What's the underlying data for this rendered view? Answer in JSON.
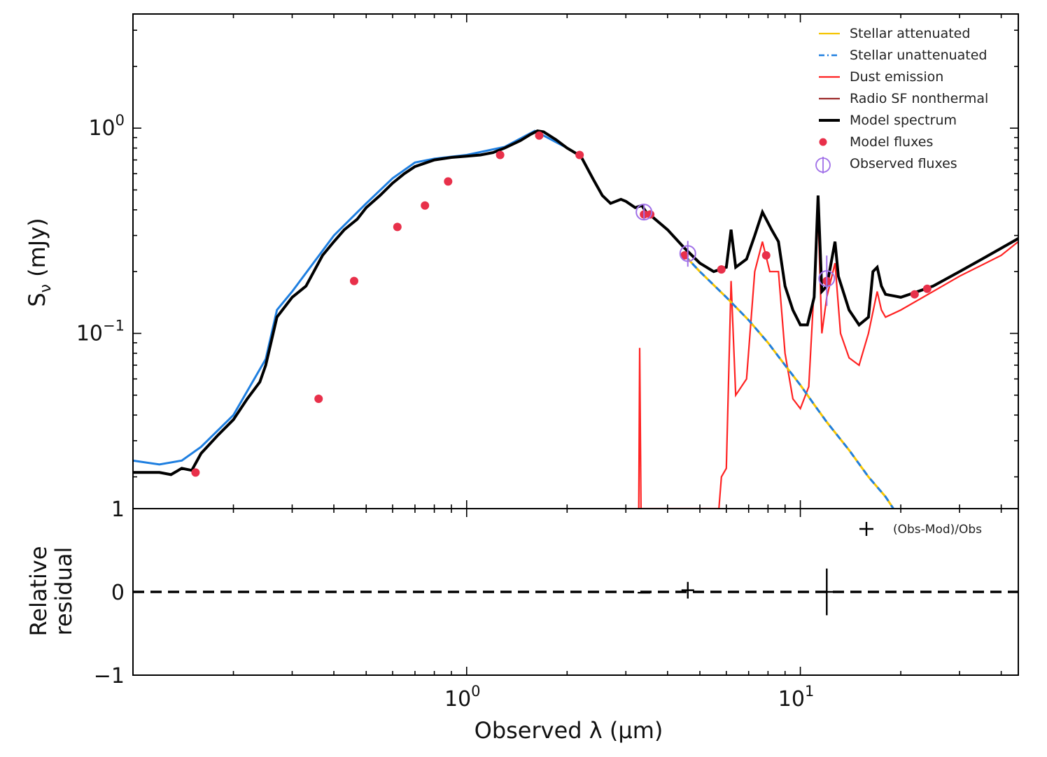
{
  "chart_data": [
    {
      "type": "line",
      "panel": "top",
      "xscale": "log",
      "yscale": "log",
      "xlim": [
        0.1,
        45
      ],
      "ylim": [
        0.014,
        3.6
      ],
      "ylabel_main": "S",
      "ylabel_sub": "ν",
      "ylabel_unit": " (mJy)",
      "yticks": [
        {
          "value": 1.0,
          "base": "10",
          "exp": "0"
        },
        {
          "value": 0.1,
          "base": "10",
          "exp": "−1"
        }
      ],
      "legend": {
        "position": "top-right",
        "entries": [
          {
            "label": "Stellar attenuated",
            "color": "#f5c400",
            "style": "solid"
          },
          {
            "label": "Stellar unattenuated",
            "color": "#1f7fe0",
            "style": "dashdot"
          },
          {
            "label": "Dust emission",
            "color": "#ff2222",
            "style": "solid"
          },
          {
            "label": "Radio SF nonthermal",
            "color": "#9c2a2a",
            "style": "solid"
          },
          {
            "label": "Model spectrum",
            "color": "#000000",
            "style": "thick"
          },
          {
            "label": "Model fluxes",
            "color": "#e8304a",
            "style": "dot"
          },
          {
            "label": "Observed fluxes",
            "color": "#a070e8",
            "style": "circle-errorbar"
          }
        ]
      },
      "series": [
        {
          "name": "Model spectrum",
          "color": "#000000",
          "points": [
            [
              0.1,
              0.021
            ],
            [
              0.108,
              0.021
            ],
            [
              0.12,
              0.021
            ],
            [
              0.13,
              0.0205
            ],
            [
              0.14,
              0.022
            ],
            [
              0.15,
              0.0215
            ],
            [
              0.16,
              0.026
            ],
            [
              0.18,
              0.032
            ],
            [
              0.2,
              0.038
            ],
            [
              0.22,
              0.048
            ],
            [
              0.24,
              0.058
            ],
            [
              0.25,
              0.07
            ],
            [
              0.27,
              0.12
            ],
            [
              0.3,
              0.15
            ],
            [
              0.33,
              0.17
            ],
            [
              0.37,
              0.24
            ],
            [
              0.4,
              0.28
            ],
            [
              0.43,
              0.32
            ],
            [
              0.47,
              0.36
            ],
            [
              0.5,
              0.41
            ],
            [
              0.55,
              0.47
            ],
            [
              0.6,
              0.54
            ],
            [
              0.65,
              0.6
            ],
            [
              0.7,
              0.65
            ],
            [
              0.8,
              0.7
            ],
            [
              0.9,
              0.72
            ],
            [
              1.0,
              0.73
            ],
            [
              1.1,
              0.74
            ],
            [
              1.2,
              0.76
            ],
            [
              1.3,
              0.8
            ],
            [
              1.45,
              0.87
            ],
            [
              1.55,
              0.93
            ],
            [
              1.63,
              0.97
            ],
            [
              1.7,
              0.96
            ],
            [
              1.85,
              0.88
            ],
            [
              2.0,
              0.8
            ],
            [
              2.2,
              0.73
            ],
            [
              2.4,
              0.56
            ],
            [
              2.55,
              0.47
            ],
            [
              2.7,
              0.43
            ],
            [
              2.9,
              0.45
            ],
            [
              3.0,
              0.44
            ],
            [
              3.2,
              0.41
            ],
            [
              3.35,
              0.42
            ],
            [
              3.45,
              0.39
            ],
            [
              3.6,
              0.37
            ],
            [
              4.0,
              0.32
            ],
            [
              4.5,
              0.26
            ],
            [
              5.0,
              0.22
            ],
            [
              5.5,
              0.2
            ],
            [
              6.0,
              0.21
            ],
            [
              6.2,
              0.32
            ],
            [
              6.4,
              0.21
            ],
            [
              6.9,
              0.23
            ],
            [
              7.3,
              0.3
            ],
            [
              7.7,
              0.39
            ],
            [
              8.2,
              0.32
            ],
            [
              8.6,
              0.28
            ],
            [
              9.0,
              0.17
            ],
            [
              9.5,
              0.13
            ],
            [
              10.0,
              0.11
            ],
            [
              10.5,
              0.11
            ],
            [
              11.0,
              0.15
            ],
            [
              11.3,
              0.47
            ],
            [
              11.6,
              0.16
            ],
            [
              12.0,
              0.17
            ],
            [
              12.3,
              0.21
            ],
            [
              12.7,
              0.28
            ],
            [
              13.0,
              0.19
            ],
            [
              14.0,
              0.13
            ],
            [
              15.0,
              0.11
            ],
            [
              16.0,
              0.12
            ],
            [
              16.5,
              0.2
            ],
            [
              17.0,
              0.21
            ],
            [
              17.5,
              0.17
            ],
            [
              18.0,
              0.155
            ],
            [
              20.0,
              0.15
            ],
            [
              22.0,
              0.158
            ],
            [
              25.0,
              0.17
            ],
            [
              30.0,
              0.2
            ],
            [
              35.0,
              0.23
            ],
            [
              40.0,
              0.26
            ],
            [
              45.0,
              0.29
            ]
          ]
        },
        {
          "name": "Stellar unattenuated",
          "color": "#1f7fe0",
          "points": [
            [
              0.1,
              0.024
            ],
            [
              0.12,
              0.023
            ],
            [
              0.14,
              0.024
            ],
            [
              0.16,
              0.028
            ],
            [
              0.2,
              0.04
            ],
            [
              0.25,
              0.075
            ],
            [
              0.27,
              0.13
            ],
            [
              0.3,
              0.16
            ],
            [
              0.4,
              0.3
            ],
            [
              0.5,
              0.43
            ],
            [
              0.6,
              0.57
            ],
            [
              0.7,
              0.68
            ],
            [
              0.8,
              0.71
            ],
            [
              1.0,
              0.74
            ],
            [
              1.3,
              0.81
            ],
            [
              1.6,
              0.97
            ],
            [
              2.0,
              0.8
            ],
            [
              2.2,
              0.73
            ]
          ]
        },
        {
          "name": "Stellar attenuated",
          "color": "#f5c400",
          "points": [
            [
              4.5,
              0.24
            ],
            [
              5.0,
              0.2
            ],
            [
              6.0,
              0.15
            ],
            [
              7.0,
              0.116
            ],
            [
              8.0,
              0.09
            ],
            [
              9.0,
              0.07
            ],
            [
              10.0,
              0.056
            ],
            [
              11.0,
              0.045
            ],
            [
              12.0,
              0.037
            ],
            [
              14.0,
              0.027
            ],
            [
              16.0,
              0.02
            ],
            [
              18.0,
              0.016
            ],
            [
              19.0,
              0.014
            ]
          ]
        },
        {
          "name": "Dust emission",
          "color": "#ff2222",
          "points": [
            [
              3.28,
              0.014
            ],
            [
              3.3,
              0.085
            ],
            [
              3.33,
              0.014
            ],
            [
              5.7,
              0.014
            ],
            [
              5.8,
              0.02
            ],
            [
              6.0,
              0.022
            ],
            [
              6.2,
              0.18
            ],
            [
              6.4,
              0.05
            ],
            [
              6.9,
              0.06
            ],
            [
              7.3,
              0.2
            ],
            [
              7.7,
              0.28
            ],
            [
              8.1,
              0.2
            ],
            [
              8.6,
              0.2
            ],
            [
              9.0,
              0.08
            ],
            [
              9.5,
              0.048
            ],
            [
              10.0,
              0.043
            ],
            [
              10.6,
              0.055
            ],
            [
              11.3,
              0.38
            ],
            [
              11.6,
              0.1
            ],
            [
              12.0,
              0.15
            ],
            [
              12.7,
              0.22
            ],
            [
              13.2,
              0.1
            ],
            [
              14.0,
              0.076
            ],
            [
              15.0,
              0.07
            ],
            [
              16.0,
              0.1
            ],
            [
              17.0,
              0.16
            ],
            [
              17.5,
              0.13
            ],
            [
              18.0,
              0.12
            ],
            [
              20.0,
              0.13
            ],
            [
              25.0,
              0.16
            ],
            [
              30.0,
              0.19
            ],
            [
              40.0,
              0.24
            ],
            [
              45.0,
              0.28
            ]
          ]
        }
      ],
      "model_fluxes": [
        [
          0.154,
          0.021
        ],
        [
          0.36,
          0.048
        ],
        [
          0.46,
          0.18
        ],
        [
          0.62,
          0.33
        ],
        [
          0.75,
          0.42
        ],
        [
          0.88,
          0.55
        ],
        [
          1.26,
          0.74
        ],
        [
          1.65,
          0.92
        ],
        [
          2.18,
          0.74
        ],
        [
          3.4,
          0.38
        ],
        [
          3.55,
          0.38
        ],
        [
          4.5,
          0.24
        ],
        [
          5.8,
          0.205
        ],
        [
          7.9,
          0.24
        ],
        [
          12.0,
          0.18
        ],
        [
          22.0,
          0.155
        ],
        [
          24.0,
          0.165
        ]
      ],
      "observed_fluxes": [
        {
          "x": 3.4,
          "y": 0.39,
          "err": 0.01
        },
        {
          "x": 4.6,
          "y": 0.245,
          "err": 0.02
        },
        {
          "x": 12.0,
          "y": 0.185,
          "err": 0.04
        }
      ]
    },
    {
      "type": "scatter",
      "panel": "bottom",
      "xscale": "log",
      "xlim": [
        0.1,
        45
      ],
      "ylim": [
        -1,
        1
      ],
      "xlabel": "Observed λ (μm)",
      "ylabel_lines": [
        "Relative",
        "residual"
      ],
      "yticks": [
        "−1",
        "0",
        "1"
      ],
      "xticks": [
        {
          "value": 1,
          "base": "10",
          "exp": "0"
        },
        {
          "value": 10,
          "base": "10",
          "exp": "1"
        }
      ],
      "legend": {
        "position": "top-right",
        "entries": [
          {
            "label": "(Obs-Mod)/Obs",
            "marker": "+"
          }
        ]
      },
      "reference_line": {
        "y": 0,
        "style": "dashed"
      },
      "residuals": [
        {
          "x": 3.4,
          "y": -0.01,
          "err": 0.0
        },
        {
          "x": 4.6,
          "y": 0.02,
          "err": 0.1
        },
        {
          "x": 12.0,
          "y": 0.0,
          "err": 0.28
        }
      ]
    }
  ]
}
